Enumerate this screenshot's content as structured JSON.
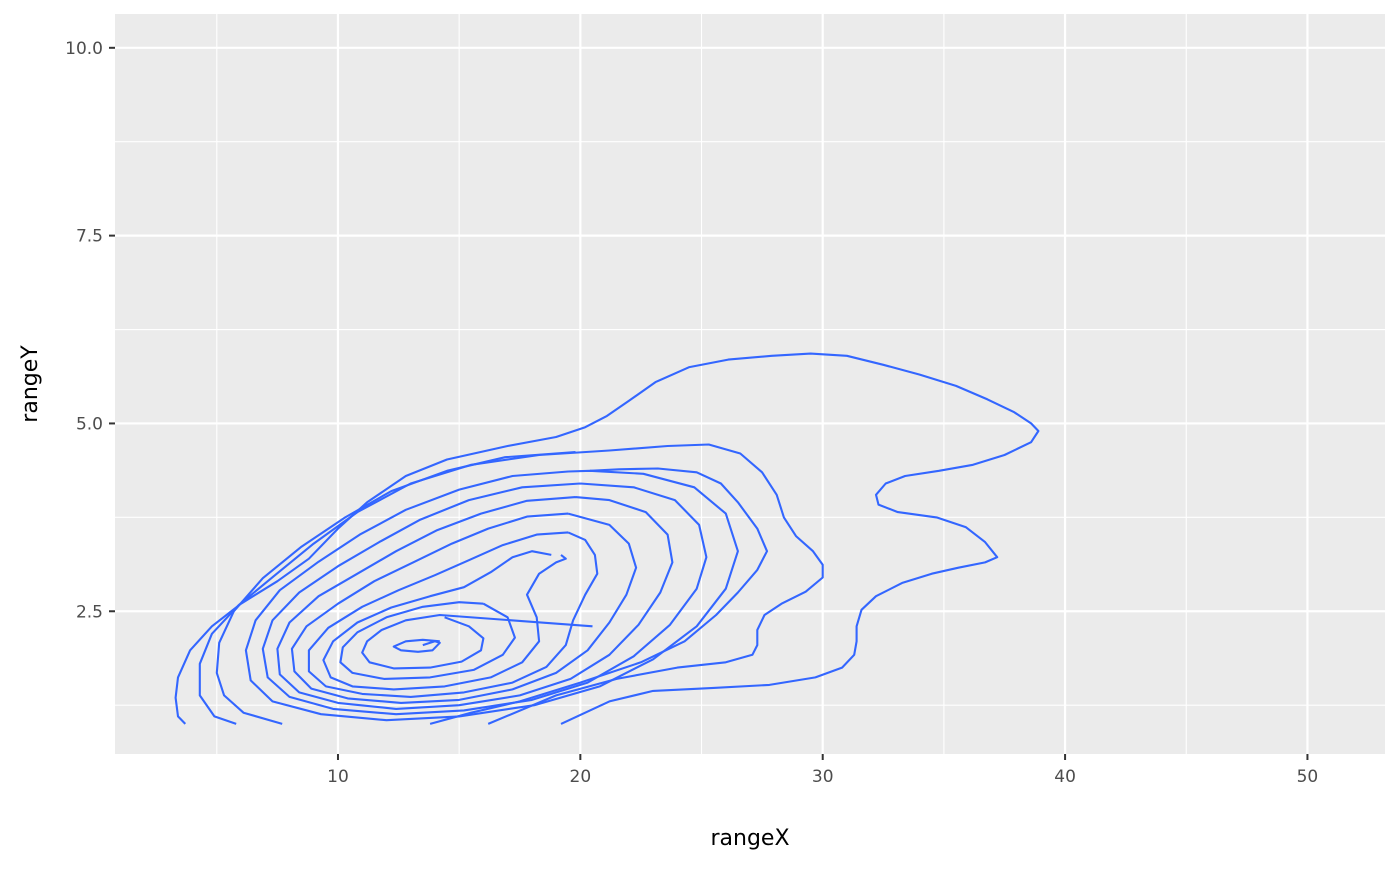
{
  "chart_data": {
    "type": "contour",
    "title": "",
    "xlabel": "rangeX",
    "ylabel": "rangeY",
    "xlim": [
      0.8,
      53.2
    ],
    "ylim": [
      0.6,
      10.45
    ],
    "x_major_ticks": [
      10,
      20,
      30,
      40,
      50
    ],
    "x_minor_ticks": [
      5,
      15,
      25,
      35,
      45
    ],
    "y_major_ticks": [
      2.5,
      5.0,
      7.5,
      10.0
    ],
    "y_minor_ticks": [
      1.25,
      3.75,
      6.25,
      8.75
    ],
    "x_tick_labels": [
      "10",
      "20",
      "30",
      "40",
      "50"
    ],
    "y_tick_labels": [
      "2.5",
      "5.0",
      "7.5",
      "10.0"
    ],
    "grid": true,
    "legend": "none",
    "colors": {
      "panel_background": "#ebebeb",
      "gridline": "#ffffff",
      "contour_line": "#3366ff",
      "tick_label": "#4d4d4d",
      "axis_title": "#000000"
    },
    "contours": [
      {
        "points": [
          [
            13.5,
            2.05
          ],
          [
            14.0,
            2.1
          ],
          [
            14.2,
            2.08
          ],
          [
            13.9,
            1.98
          ],
          [
            13.3,
            1.96
          ],
          [
            12.6,
            1.98
          ],
          [
            12.3,
            2.03
          ],
          [
            12.8,
            2.1
          ],
          [
            13.5,
            2.12
          ],
          [
            14.2,
            2.1
          ]
        ]
      },
      {
        "points": [
          [
            20.5,
            2.3
          ],
          [
            14.2,
            2.45
          ],
          [
            12.8,
            2.38
          ],
          [
            11.8,
            2.25
          ],
          [
            11.2,
            2.1
          ],
          [
            11.0,
            1.95
          ],
          [
            11.3,
            1.82
          ],
          [
            12.3,
            1.74
          ],
          [
            13.8,
            1.75
          ],
          [
            15.1,
            1.83
          ],
          [
            15.9,
            1.98
          ],
          [
            16.0,
            2.14
          ],
          [
            15.4,
            2.3
          ],
          [
            14.4,
            2.42
          ]
        ]
      },
      {
        "points": [
          [
            16.0,
            2.6
          ],
          [
            15.0,
            2.62
          ],
          [
            13.5,
            2.56
          ],
          [
            12.0,
            2.42
          ],
          [
            10.8,
            2.22
          ],
          [
            10.2,
            2.02
          ],
          [
            10.1,
            1.82
          ],
          [
            10.6,
            1.68
          ],
          [
            11.9,
            1.6
          ],
          [
            13.8,
            1.62
          ],
          [
            15.6,
            1.72
          ],
          [
            16.8,
            1.92
          ],
          [
            17.3,
            2.15
          ],
          [
            17.0,
            2.42
          ],
          [
            16.0,
            2.6
          ]
        ]
      },
      {
        "points": [
          [
            18.8,
            3.25
          ],
          [
            18.0,
            3.3
          ],
          [
            17.2,
            3.22
          ],
          [
            16.3,
            3.02
          ],
          [
            15.2,
            2.82
          ],
          [
            13.8,
            2.7
          ],
          [
            12.2,
            2.55
          ],
          [
            10.8,
            2.35
          ],
          [
            9.8,
            2.1
          ],
          [
            9.4,
            1.85
          ],
          [
            9.7,
            1.62
          ],
          [
            10.6,
            1.5
          ],
          [
            12.3,
            1.46
          ],
          [
            14.4,
            1.5
          ],
          [
            16.3,
            1.62
          ],
          [
            17.6,
            1.82
          ],
          [
            18.3,
            2.1
          ],
          [
            18.2,
            2.42
          ],
          [
            17.8,
            2.72
          ],
          [
            18.3,
            3.0
          ],
          [
            19.0,
            3.15
          ],
          [
            19.4,
            3.2
          ],
          [
            19.2,
            3.25
          ]
        ]
      },
      {
        "points": [
          [
            19.5,
            3.55
          ],
          [
            18.2,
            3.52
          ],
          [
            16.8,
            3.38
          ],
          [
            15.4,
            3.18
          ],
          [
            14.0,
            2.98
          ],
          [
            12.5,
            2.78
          ],
          [
            11.0,
            2.56
          ],
          [
            9.6,
            2.28
          ],
          [
            8.8,
            1.98
          ],
          [
            8.8,
            1.7
          ],
          [
            9.5,
            1.5
          ],
          [
            11.0,
            1.4
          ],
          [
            13.0,
            1.36
          ],
          [
            15.2,
            1.42
          ],
          [
            17.2,
            1.55
          ],
          [
            18.6,
            1.76
          ],
          [
            19.4,
            2.05
          ],
          [
            19.7,
            2.38
          ],
          [
            20.2,
            2.72
          ],
          [
            20.7,
            3.0
          ],
          [
            20.6,
            3.25
          ],
          [
            20.2,
            3.45
          ],
          [
            19.5,
            3.55
          ]
        ]
      },
      {
        "points": [
          [
            19.5,
            3.8
          ],
          [
            17.8,
            3.76
          ],
          [
            16.2,
            3.6
          ],
          [
            14.7,
            3.4
          ],
          [
            13.1,
            3.15
          ],
          [
            11.5,
            2.9
          ],
          [
            10.0,
            2.6
          ],
          [
            8.7,
            2.3
          ],
          [
            8.1,
            2.0
          ],
          [
            8.2,
            1.7
          ],
          [
            8.9,
            1.47
          ],
          [
            10.4,
            1.34
          ],
          [
            12.6,
            1.28
          ],
          [
            15.0,
            1.32
          ],
          [
            17.2,
            1.46
          ],
          [
            19.0,
            1.68
          ],
          [
            20.3,
            1.98
          ],
          [
            21.2,
            2.35
          ],
          [
            21.9,
            2.72
          ],
          [
            22.3,
            3.08
          ],
          [
            22.0,
            3.4
          ],
          [
            21.2,
            3.65
          ],
          [
            19.5,
            3.8
          ]
        ]
      },
      {
        "points": [
          [
            19.8,
            4.02
          ],
          [
            17.8,
            3.97
          ],
          [
            15.9,
            3.8
          ],
          [
            14.1,
            3.58
          ],
          [
            12.4,
            3.3
          ],
          [
            10.8,
            3.0
          ],
          [
            9.2,
            2.7
          ],
          [
            8.0,
            2.35
          ],
          [
            7.5,
            2.0
          ],
          [
            7.6,
            1.66
          ],
          [
            8.4,
            1.42
          ],
          [
            10.0,
            1.28
          ],
          [
            12.4,
            1.2
          ],
          [
            15.0,
            1.25
          ],
          [
            17.5,
            1.38
          ],
          [
            19.6,
            1.6
          ],
          [
            21.2,
            1.92
          ],
          [
            22.4,
            2.32
          ],
          [
            23.3,
            2.75
          ],
          [
            23.8,
            3.15
          ],
          [
            23.6,
            3.52
          ],
          [
            22.7,
            3.82
          ],
          [
            21.2,
            3.98
          ],
          [
            19.8,
            4.02
          ]
        ]
      },
      {
        "points": [
          [
            20.0,
            4.2
          ],
          [
            17.6,
            4.15
          ],
          [
            15.4,
            3.98
          ],
          [
            13.4,
            3.72
          ],
          [
            11.7,
            3.42
          ],
          [
            10.0,
            3.1
          ],
          [
            8.4,
            2.75
          ],
          [
            7.3,
            2.38
          ],
          [
            6.9,
            2.0
          ],
          [
            7.1,
            1.62
          ],
          [
            8.0,
            1.36
          ],
          [
            9.8,
            1.2
          ],
          [
            12.4,
            1.13
          ],
          [
            15.2,
            1.18
          ],
          [
            18.0,
            1.32
          ],
          [
            20.3,
            1.55
          ],
          [
            22.2,
            1.9
          ],
          [
            23.7,
            2.32
          ],
          [
            24.8,
            2.8
          ],
          [
            25.2,
            3.22
          ],
          [
            24.9,
            3.65
          ],
          [
            23.9,
            3.98
          ],
          [
            22.2,
            4.15
          ],
          [
            20.0,
            4.2
          ]
        ]
      },
      {
        "points": [
          [
            19.5,
            4.36
          ],
          [
            17.2,
            4.3
          ],
          [
            15.0,
            4.12
          ],
          [
            12.8,
            3.85
          ],
          [
            10.9,
            3.52
          ],
          [
            9.2,
            3.16
          ],
          [
            7.6,
            2.78
          ],
          [
            6.6,
            2.38
          ],
          [
            6.2,
            1.98
          ],
          [
            6.4,
            1.58
          ],
          [
            7.3,
            1.3
          ],
          [
            9.3,
            1.13
          ],
          [
            12.0,
            1.05
          ],
          [
            15.0,
            1.1
          ],
          [
            18.1,
            1.25
          ],
          [
            20.8,
            1.5
          ],
          [
            23.0,
            1.86
          ],
          [
            24.8,
            2.3
          ],
          [
            26.0,
            2.8
          ],
          [
            26.5,
            3.3
          ],
          [
            26.0,
            3.8
          ],
          [
            24.7,
            4.15
          ],
          [
            22.6,
            4.33
          ],
          [
            20.4,
            4.37
          ],
          [
            19.5,
            4.36
          ]
        ]
      },
      {
        "points": [
          [
            19.8,
            4.62
          ],
          [
            16.9,
            4.55
          ],
          [
            14.5,
            4.37
          ],
          [
            12.2,
            4.1
          ],
          [
            10.3,
            3.75
          ],
          [
            8.5,
            3.36
          ],
          [
            6.9,
            2.94
          ],
          [
            5.7,
            2.5
          ],
          [
            5.1,
            2.08
          ],
          [
            5.0,
            1.68
          ],
          [
            5.3,
            1.38
          ],
          [
            6.1,
            1.15
          ],
          [
            7.7,
            1.0
          ]
        ]
      },
      {
        "points": [
          [
            5.8,
            1.0
          ],
          [
            4.9,
            1.1
          ],
          [
            4.3,
            1.38
          ],
          [
            4.3,
            1.8
          ],
          [
            4.8,
            2.2
          ],
          [
            5.9,
            2.58
          ],
          [
            7.4,
            2.98
          ],
          [
            9.0,
            3.4
          ],
          [
            10.8,
            3.82
          ],
          [
            13.0,
            4.2
          ],
          [
            15.5,
            4.45
          ],
          [
            18.3,
            4.58
          ],
          [
            21.2,
            4.64
          ],
          [
            23.6,
            4.7
          ],
          [
            25.3,
            4.72
          ],
          [
            26.6,
            4.6
          ],
          [
            27.5,
            4.35
          ],
          [
            28.1,
            4.05
          ],
          [
            28.4,
            3.75
          ],
          [
            28.9,
            3.5
          ],
          [
            29.6,
            3.3
          ],
          [
            30.0,
            3.12
          ],
          [
            30.0,
            2.95
          ],
          [
            29.3,
            2.76
          ],
          [
            28.3,
            2.6
          ],
          [
            27.6,
            2.45
          ],
          [
            27.3,
            2.25
          ],
          [
            27.3,
            2.05
          ],
          [
            27.1,
            1.92
          ],
          [
            26.0,
            1.82
          ],
          [
            24.0,
            1.75
          ],
          [
            21.5,
            1.6
          ],
          [
            19.0,
            1.38
          ],
          [
            16.2,
            1.0
          ]
        ]
      },
      {
        "points": [
          [
            3.7,
            1.0
          ],
          [
            3.4,
            1.1
          ],
          [
            3.3,
            1.35
          ],
          [
            3.4,
            1.62
          ],
          [
            3.9,
            1.98
          ],
          [
            4.8,
            2.3
          ],
          [
            6.0,
            2.6
          ],
          [
            7.5,
            2.9
          ],
          [
            8.8,
            3.2
          ],
          [
            10.0,
            3.6
          ],
          [
            11.2,
            3.95
          ],
          [
            12.8,
            4.3
          ],
          [
            14.5,
            4.52
          ],
          [
            17.0,
            4.7
          ],
          [
            19.0,
            4.82
          ],
          [
            20.2,
            4.95
          ],
          [
            21.1,
            5.1
          ],
          [
            22.0,
            5.3
          ],
          [
            23.1,
            5.55
          ],
          [
            24.5,
            5.75
          ],
          [
            26.1,
            5.85
          ],
          [
            27.9,
            5.9
          ],
          [
            29.5,
            5.93
          ],
          [
            31.0,
            5.9
          ],
          [
            32.5,
            5.78
          ],
          [
            34.0,
            5.65
          ],
          [
            35.5,
            5.5
          ],
          [
            36.8,
            5.32
          ],
          [
            37.9,
            5.15
          ],
          [
            38.6,
            5.0
          ],
          [
            38.9,
            4.9
          ],
          [
            38.6,
            4.75
          ],
          [
            37.5,
            4.58
          ],
          [
            36.2,
            4.45
          ],
          [
            34.8,
            4.37
          ],
          [
            33.4,
            4.3
          ],
          [
            32.6,
            4.2
          ],
          [
            32.2,
            4.05
          ],
          [
            32.3,
            3.92
          ],
          [
            33.1,
            3.82
          ],
          [
            34.7,
            3.75
          ],
          [
            35.9,
            3.62
          ],
          [
            36.7,
            3.42
          ],
          [
            37.2,
            3.22
          ],
          [
            36.7,
            3.15
          ],
          [
            35.6,
            3.08
          ],
          [
            34.5,
            3.0
          ],
          [
            33.3,
            2.88
          ],
          [
            32.2,
            2.7
          ],
          [
            31.6,
            2.52
          ],
          [
            31.4,
            2.3
          ],
          [
            31.4,
            2.1
          ],
          [
            31.3,
            1.92
          ],
          [
            30.8,
            1.75
          ],
          [
            29.7,
            1.62
          ],
          [
            27.8,
            1.52
          ],
          [
            25.5,
            1.48
          ],
          [
            23.0,
            1.44
          ],
          [
            21.2,
            1.3
          ],
          [
            19.2,
            1.0
          ]
        ]
      },
      {
        "points": [
          [
            13.8,
            1.0
          ],
          [
            15.5,
            1.15
          ],
          [
            17.5,
            1.3
          ],
          [
            20.0,
            1.55
          ],
          [
            22.5,
            1.82
          ],
          [
            24.3,
            2.1
          ],
          [
            25.6,
            2.45
          ],
          [
            26.5,
            2.75
          ],
          [
            27.3,
            3.05
          ],
          [
            27.7,
            3.3
          ],
          [
            27.3,
            3.6
          ],
          [
            26.5,
            3.95
          ],
          [
            25.8,
            4.2
          ],
          [
            24.8,
            4.35
          ],
          [
            23.2,
            4.4
          ],
          [
            21.6,
            4.39
          ],
          [
            20.4,
            4.37
          ]
        ]
      }
    ]
  }
}
